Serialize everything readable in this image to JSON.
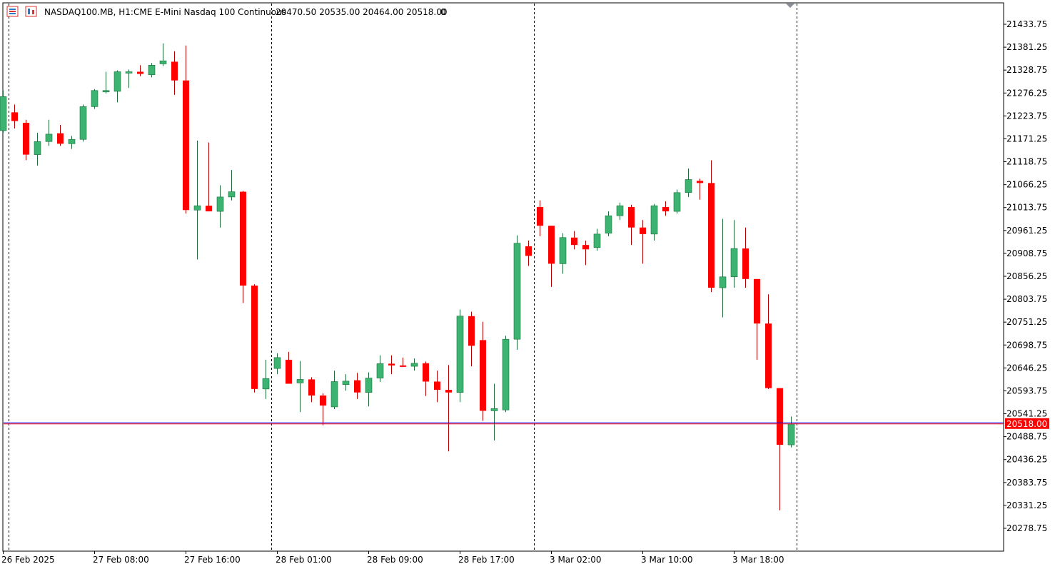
{
  "header": {
    "symbol_timeframe": "NASDAQ100.MB, H1:",
    "description": "CME E-Mini Nasdaq 100 Continuous",
    "ohlc": "20470.50 20535.00 20464.00 20518.00",
    "volume": "0",
    "icons": [
      "trade-panel-icon",
      "chart-type-icon"
    ]
  },
  "colors": {
    "bull": "#3cb371",
    "bull_border": "#1e6b3c",
    "bear": "#ff0000",
    "bear_border": "#b40000",
    "ask_line": "#0000ff",
    "bid_line": "#ff0000",
    "price_tag_bg": "#ff0000",
    "separator": "#000000"
  },
  "chart_data": {
    "type": "candlestick",
    "title": "",
    "xlabel": "",
    "ylabel": "",
    "ylim": [
      20240,
      21490
    ],
    "yticks": [
      21433.75,
      21381.25,
      21328.75,
      21276.25,
      21223.75,
      21171.25,
      21118.75,
      21066.25,
      21013.75,
      20961.25,
      20908.75,
      20856.25,
      20803.75,
      20751.25,
      20698.75,
      20646.25,
      20593.75,
      20541.25,
      20488.75,
      20436.25,
      20383.75,
      20331.25,
      20278.75
    ],
    "xtick_labels": [
      {
        "label": "26 Feb 2025",
        "bar": 0
      },
      {
        "label": "27 Feb 08:00",
        "bar": 8
      },
      {
        "label": "27 Feb 16:00",
        "bar": 16
      },
      {
        "label": "28 Feb 01:00",
        "bar": 24
      },
      {
        "label": "28 Feb 09:00",
        "bar": 32
      },
      {
        "label": "28 Feb 17:00",
        "bar": 40
      },
      {
        "label": "3 Mar 02:00",
        "bar": 48
      },
      {
        "label": "3 Mar 10:00",
        "bar": 56
      },
      {
        "label": "3 Mar 18:00",
        "bar": 64
      }
    ],
    "period_separators_bar": [
      0.5,
      23.5,
      46.5,
      69.5
    ],
    "current_price": 20518.0,
    "current_price_label": "20518.00",
    "ask_price": 20520.5,
    "candles": [
      {
        "o": 21190,
        "h": 21282,
        "l": 21185,
        "c": 21268
      },
      {
        "o": 21232,
        "h": 21250,
        "l": 21195,
        "c": 21212
      },
      {
        "o": 21208,
        "h": 21215,
        "l": 21122,
        "c": 21135
      },
      {
        "o": 21135,
        "h": 21185,
        "l": 21110,
        "c": 21165
      },
      {
        "o": 21165,
        "h": 21215,
        "l": 21155,
        "c": 21182
      },
      {
        "o": 21184,
        "h": 21203,
        "l": 21155,
        "c": 21160
      },
      {
        "o": 21160,
        "h": 21178,
        "l": 21148,
        "c": 21170
      },
      {
        "o": 21170,
        "h": 21250,
        "l": 21165,
        "c": 21245
      },
      {
        "o": 21245,
        "h": 21285,
        "l": 21240,
        "c": 21282
      },
      {
        "o": 21280,
        "h": 21325,
        "l": 21275,
        "c": 21282
      },
      {
        "o": 21280,
        "h": 21328,
        "l": 21255,
        "c": 21325
      },
      {
        "o": 21323,
        "h": 21330,
        "l": 21288,
        "c": 21325
      },
      {
        "o": 21325,
        "h": 21340,
        "l": 21315,
        "c": 21320
      },
      {
        "o": 21318,
        "h": 21345,
        "l": 21312,
        "c": 21340
      },
      {
        "o": 21343,
        "h": 21390,
        "l": 21338,
        "c": 21350
      },
      {
        "o": 21348,
        "h": 21372,
        "l": 21272,
        "c": 21305
      },
      {
        "o": 21305,
        "h": 21385,
        "l": 21000,
        "c": 21008
      },
      {
        "o": 21008,
        "h": 21167,
        "l": 20895,
        "c": 21018
      },
      {
        "o": 21018,
        "h": 21163,
        "l": 21005,
        "c": 21005
      },
      {
        "o": 21005,
        "h": 21065,
        "l": 20968,
        "c": 21038
      },
      {
        "o": 21038,
        "h": 21100,
        "l": 21030,
        "c": 21050
      },
      {
        "o": 21050,
        "h": 21052,
        "l": 20795,
        "c": 20835
      },
      {
        "o": 20835,
        "h": 20838,
        "l": 20590,
        "c": 20598
      },
      {
        "o": 20598,
        "h": 20665,
        "l": 20575,
        "c": 20622
      },
      {
        "o": 20645,
        "h": 20680,
        "l": 20632,
        "c": 20670
      },
      {
        "o": 20665,
        "h": 20683,
        "l": 20613,
        "c": 20610
      },
      {
        "o": 20612,
        "h": 20662,
        "l": 20545,
        "c": 20620
      },
      {
        "o": 20620,
        "h": 20625,
        "l": 20568,
        "c": 20583
      },
      {
        "o": 20583,
        "h": 20588,
        "l": 20515,
        "c": 20560
      },
      {
        "o": 20557,
        "h": 20640,
        "l": 20552,
        "c": 20615
      },
      {
        "o": 20608,
        "h": 20632,
        "l": 20594,
        "c": 20616
      },
      {
        "o": 20618,
        "h": 20635,
        "l": 20575,
        "c": 20590
      },
      {
        "o": 20590,
        "h": 20636,
        "l": 20558,
        "c": 20623
      },
      {
        "o": 20623,
        "h": 20675,
        "l": 20614,
        "c": 20656
      },
      {
        "o": 20656,
        "h": 20675,
        "l": 20632,
        "c": 20652
      },
      {
        "o": 20652,
        "h": 20670,
        "l": 20648,
        "c": 20650
      },
      {
        "o": 20650,
        "h": 20668,
        "l": 20640,
        "c": 20657
      },
      {
        "o": 20657,
        "h": 20661,
        "l": 20582,
        "c": 20615
      },
      {
        "o": 20615,
        "h": 20640,
        "l": 20568,
        "c": 20596
      },
      {
        "o": 20596,
        "h": 20653,
        "l": 20455,
        "c": 20590
      },
      {
        "o": 20590,
        "h": 20780,
        "l": 20568,
        "c": 20765
      },
      {
        "o": 20765,
        "h": 20775,
        "l": 20650,
        "c": 20697
      },
      {
        "o": 20710,
        "h": 20752,
        "l": 20525,
        "c": 20548
      },
      {
        "o": 20548,
        "h": 20610,
        "l": 20480,
        "c": 20553
      },
      {
        "o": 20550,
        "h": 20720,
        "l": 20545,
        "c": 20712
      },
      {
        "o": 20712,
        "h": 20950,
        "l": 20688,
        "c": 20932
      },
      {
        "o": 20925,
        "h": 20938,
        "l": 20880,
        "c": 20903
      },
      {
        "o": 21015,
        "h": 21030,
        "l": 20948,
        "c": 20972
      },
      {
        "o": 20972,
        "h": 20972,
        "l": 20832,
        "c": 20885
      },
      {
        "o": 20885,
        "h": 20955,
        "l": 20862,
        "c": 20945
      },
      {
        "o": 20945,
        "h": 20960,
        "l": 20918,
        "c": 20928
      },
      {
        "o": 20928,
        "h": 20938,
        "l": 20882,
        "c": 20918
      },
      {
        "o": 20922,
        "h": 20965,
        "l": 20915,
        "c": 20953
      },
      {
        "o": 20955,
        "h": 21005,
        "l": 20948,
        "c": 20995
      },
      {
        "o": 20995,
        "h": 21025,
        "l": 20985,
        "c": 21018
      },
      {
        "o": 21015,
        "h": 21020,
        "l": 20928,
        "c": 20968
      },
      {
        "o": 20968,
        "h": 20985,
        "l": 20885,
        "c": 20953
      },
      {
        "o": 20953,
        "h": 21022,
        "l": 20938,
        "c": 21018
      },
      {
        "o": 21015,
        "h": 21028,
        "l": 20995,
        "c": 21005
      },
      {
        "o": 21005,
        "h": 21055,
        "l": 21000,
        "c": 21048
      },
      {
        "o": 21048,
        "h": 21103,
        "l": 21038,
        "c": 21078
      },
      {
        "o": 21075,
        "h": 21080,
        "l": 21032,
        "c": 21070
      },
      {
        "o": 21070,
        "h": 21122,
        "l": 20820,
        "c": 20830
      },
      {
        "o": 20830,
        "h": 20988,
        "l": 20762,
        "c": 20855
      },
      {
        "o": 20855,
        "h": 20985,
        "l": 20830,
        "c": 20920
      },
      {
        "o": 20920,
        "h": 20968,
        "l": 20830,
        "c": 20850
      },
      {
        "o": 20850,
        "h": 20850,
        "l": 20665,
        "c": 20748
      },
      {
        "o": 20748,
        "h": 20815,
        "l": 20598,
        "c": 20600
      },
      {
        "o": 20600,
        "h": 20600,
        "l": 20320,
        "c": 20470
      },
      {
        "o": 20470,
        "h": 20535,
        "l": 20464,
        "c": 20518
      }
    ]
  }
}
